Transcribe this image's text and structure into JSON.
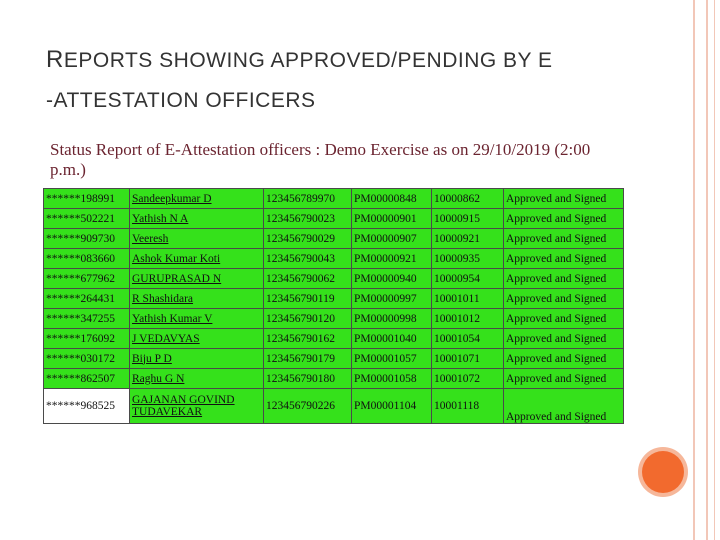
{
  "slide": {
    "title_line1_first": "R",
    "title_line1_rest": "EPORTS SHOWING APPROVED/PENDING BY E",
    "title_line2": "-ATTESTATION OFFICERS"
  },
  "report": {
    "title": "Status Report of E-Attestation officers : Demo Exercise as on 29/10/2019 (2:00 p.m.)",
    "rows": [
      {
        "id": "******198991",
        "name": "Sandeepkumar D",
        "number": "123456789970",
        "pm": "PM00000848",
        "code": "10000862",
        "status": "Approved and Signed"
      },
      {
        "id": "******502221",
        "name": "Yathish N A",
        "number": "123456790023",
        "pm": "PM00000901",
        "code": "10000915",
        "status": "Approved and Signed"
      },
      {
        "id": "******909730",
        "name": "Veeresh",
        "number": "123456790029",
        "pm": "PM00000907",
        "code": "10000921",
        "status": "Approved and Signed"
      },
      {
        "id": "******083660",
        "name": "Ashok Kumar Koti",
        "number": "123456790043",
        "pm": "PM00000921",
        "code": "10000935",
        "status": "Approved and Signed"
      },
      {
        "id": "******677962",
        "name": "GURUPRASAD N",
        "number": "123456790062",
        "pm": "PM00000940",
        "code": "10000954",
        "status": "Approved and Signed"
      },
      {
        "id": "******264431",
        "name": "R Shashidara",
        "number": "123456790119",
        "pm": "PM00000997",
        "code": "10001011",
        "status": "Approved and Signed"
      },
      {
        "id": "******347255",
        "name": "Yathish Kumar V",
        "number": "123456790120",
        "pm": "PM00000998",
        "code": "10001012",
        "status": "Approved and Signed"
      },
      {
        "id": "******176092",
        "name": "J VEDAVYAS",
        "number": "123456790162",
        "pm": "PM00001040",
        "code": "10001054",
        "status": "Approved and Signed"
      },
      {
        "id": "******030172",
        "name": "Biju P D",
        "number": "123456790179",
        "pm": "PM00001057",
        "code": "10001071",
        "status": "Approved and Signed"
      },
      {
        "id": "******862507",
        "name": "Raghu G N",
        "number": "123456790180",
        "pm": "PM00001058",
        "code": "10001072",
        "status": "Approved and Signed"
      },
      {
        "id": "******968525",
        "name": "GAJANAN GOVIND TUDAVEKAR",
        "number": "123456790226",
        "pm": "PM00001104",
        "code": "10001118",
        "status": "Approved and Signed"
      }
    ]
  },
  "colors": {
    "approved_green": "#35e11b",
    "accent_orange": "#f26a2e",
    "report_title": "#6b2430"
  }
}
